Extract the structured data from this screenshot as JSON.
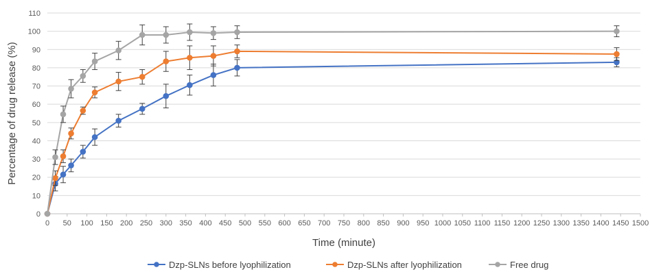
{
  "chart_data": {
    "type": "line",
    "title": "",
    "xlabel": "Time (minute)",
    "ylabel": "Percentage of drug release (%)",
    "xlim": [
      0,
      1500
    ],
    "ylim": [
      0,
      110
    ],
    "xticks": [
      0,
      50,
      100,
      150,
      200,
      250,
      300,
      350,
      400,
      450,
      500,
      550,
      600,
      650,
      700,
      750,
      800,
      850,
      900,
      950,
      1000,
      1050,
      1100,
      1150,
      1200,
      1250,
      1300,
      1350,
      1400,
      1450,
      1500
    ],
    "yticks": [
      0,
      10,
      20,
      30,
      40,
      50,
      60,
      70,
      80,
      90,
      100,
      110
    ],
    "grid": "horizontal",
    "legend_position": "bottom",
    "series": [
      {
        "name": "Dzp-SLNs before lyophilization",
        "color": "#4472c4",
        "x": [
          0,
          20,
          40,
          60,
          90,
          120,
          180,
          240,
          300,
          360,
          420,
          480,
          1440
        ],
        "y": [
          0,
          16.5,
          21.5,
          26.5,
          34,
          42,
          51,
          57.5,
          64.5,
          70.5,
          76,
          80,
          83
        ],
        "err": [
          0,
          4,
          4.5,
          3.5,
          3.5,
          4.5,
          3.5,
          3,
          6.5,
          5.5,
          6,
          4.5,
          2.5
        ]
      },
      {
        "name": "Dzp-SLNs after lyophilization",
        "color": "#ed7d31",
        "x": [
          0,
          20,
          40,
          60,
          90,
          120,
          180,
          240,
          300,
          360,
          420,
          480,
          1440
        ],
        "y": [
          0,
          19.5,
          31.5,
          44,
          56.5,
          66.5,
          72.5,
          75,
          83.5,
          85.5,
          86.5,
          89,
          87.5
        ],
        "err": [
          0,
          4,
          3.5,
          3,
          2,
          3,
          5,
          4,
          5.5,
          6.5,
          5.5,
          3.5,
          3.5
        ]
      },
      {
        "name": "Free drug",
        "color": "#a5a5a5",
        "x": [
          0,
          20,
          40,
          60,
          90,
          120,
          180,
          240,
          300,
          360,
          420,
          480,
          1440
        ],
        "y": [
          0,
          31,
          54.5,
          68.5,
          75.5,
          83.5,
          89.5,
          98,
          98,
          99.5,
          99,
          99.5,
          100
        ],
        "err": [
          0,
          4,
          4.5,
          5,
          3.5,
          4.5,
          5,
          5.5,
          4.5,
          4.5,
          3.5,
          3.5,
          3
        ]
      }
    ]
  }
}
